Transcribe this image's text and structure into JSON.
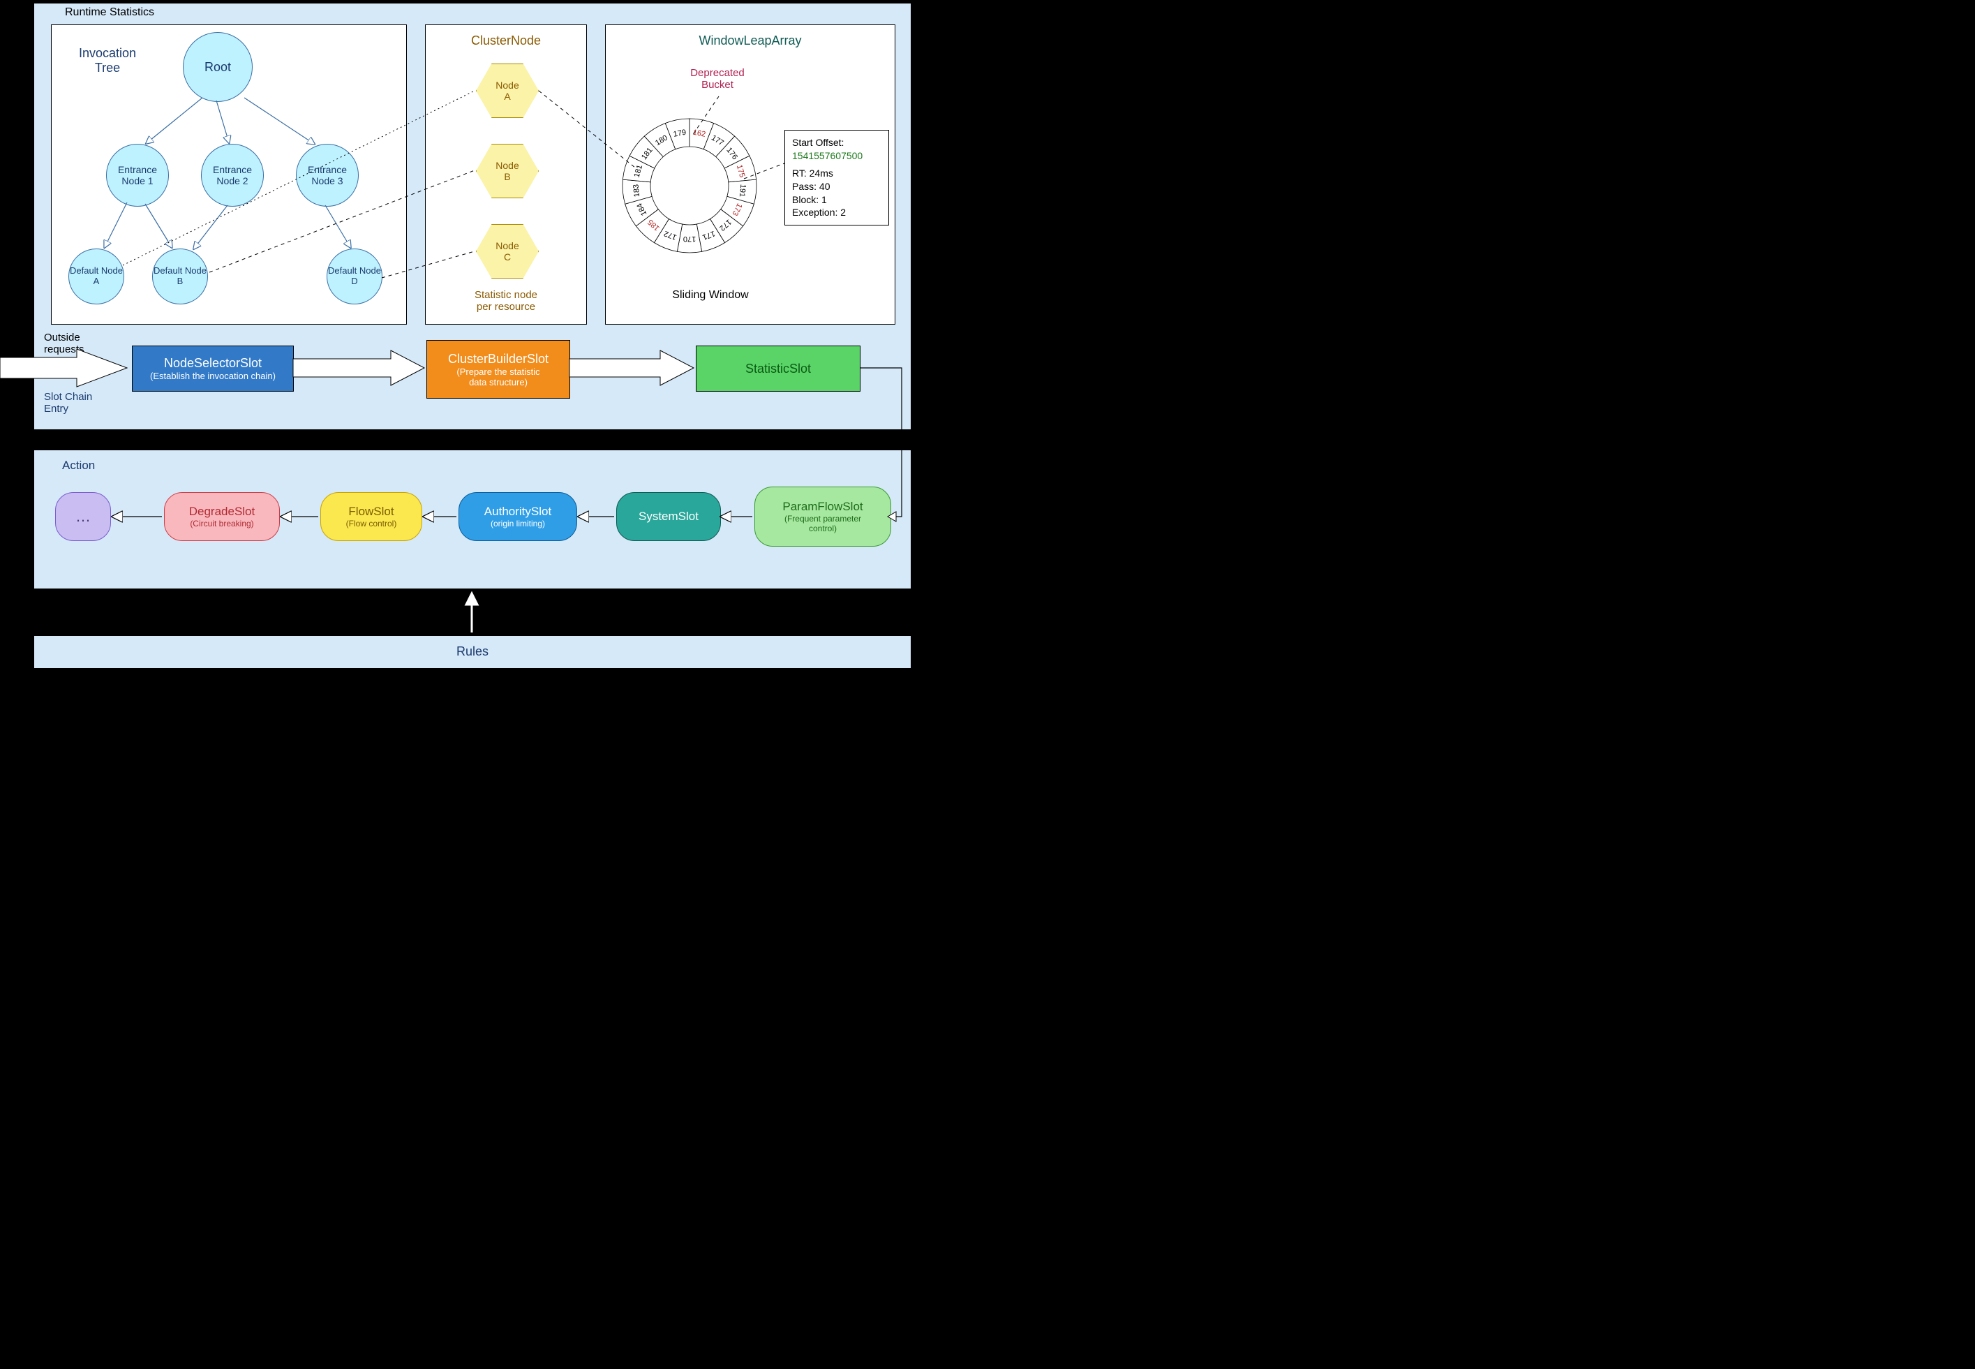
{
  "colors": {
    "panel_bg": "#d6e9f8",
    "panel_border": "#000000",
    "label_navy": "#1a3a6e",
    "circle_fill": "#bff2ff",
    "circle_stroke": "#3a6ea5",
    "hex_fill": "#faf3a8",
    "hex_stroke": "#a88a00",
    "hex_text": "#8a5a00",
    "slot_blue_bg": "#327ac7",
    "slot_blue_text": "#ffffff",
    "slot_orange_bg": "#f28c1b",
    "slot_orange_text": "#ffffff",
    "slot_green_bg": "#5ad467",
    "slot_green_text": "#0b5a13",
    "r_purple_bg": "#c9bdf2",
    "r_purple_border": "#7a5bd1",
    "r_red_bg": "#f9b8bd",
    "r_red_border": "#cf3b46",
    "r_red_text": "#b02a33",
    "r_yellow_bg": "#fbe74e",
    "r_yellow_border": "#c9a300",
    "r_yellow_text": "#7a5c00",
    "r_blue_bg": "#2f9ee6",
    "r_blue_border": "#0c5c9a",
    "r_teal_bg": "#2aa79b",
    "r_teal_border": "#0d5a53",
    "r_lgreen_bg": "#a7e8a1",
    "r_lgreen_border": "#3a9a33",
    "r_lgreen_text": "#1d6b18",
    "deprecated_text": "#b02050",
    "offset_text": "#1d7a1d",
    "ring_red": "#b02020"
  },
  "runtime_stats_label": "Runtime Statistics",
  "invocation_tree": {
    "title": "Invocation\nTree",
    "title_color": "#1a3a6e",
    "root": "Root",
    "nodes": {
      "e1": "Entrance\nNode 1",
      "e2": "Entrance\nNode 2",
      "e3": "Entrance\nNode 3",
      "a": "Default\nNode A",
      "b": "Default\nNode B",
      "d": "Default\nNode D"
    }
  },
  "cluster_node": {
    "title": "ClusterNode",
    "title_color": "#8a5a00",
    "a": "Node\nA",
    "b": "Node\nB",
    "c": "Node\nC",
    "caption": "Statistic node\nper resource"
  },
  "window_leap": {
    "title": "WindowLeapArray",
    "title_color": "#0d5a53",
    "deprecated": "Deprecated\nBucket",
    "caption": "Sliding Window",
    "offset_label": "Start Offset:",
    "offset_value": "1541557607500",
    "rt": "RT: 24ms",
    "pass": "Pass: 40",
    "block": "Block: 1",
    "exc": "Exception: 2",
    "ring": {
      "values": [
        162,
        177,
        176,
        175,
        191,
        173,
        172,
        171,
        170,
        172,
        185,
        184,
        183,
        181,
        181,
        180,
        179
      ],
      "red_indices": [
        0,
        3,
        5,
        10
      ],
      "deprecated_index": 0,
      "info_index": 3
    }
  },
  "outside_label": "Outside\nrequests",
  "slot_chain_label": "Slot Chain\nEntry",
  "slots": {
    "node_selector": {
      "name": "NodeSelectorSlot",
      "sub": "(Establish the invocation chain)"
    },
    "cluster_builder": {
      "name": "ClusterBuilderSlot",
      "sub": "(Prepare the statistic\ndata structure)"
    },
    "statistic": {
      "name": "StatisticSlot",
      "sub": ""
    }
  },
  "action_label": "Action",
  "action_slots": {
    "more": "…",
    "degrade": {
      "name": "DegradeSlot",
      "sub": "(Circuit breaking)"
    },
    "flow": {
      "name": "FlowSlot",
      "sub": "(Flow control)"
    },
    "authority": {
      "name": "AuthoritySlot",
      "sub": "(origin limiting)"
    },
    "system": {
      "name": "SystemSlot",
      "sub": ""
    },
    "paramflow": {
      "name": "ParamFlowSlot",
      "sub": "(Frequent parameter\ncontrol)"
    }
  },
  "rules_label": "Rules"
}
